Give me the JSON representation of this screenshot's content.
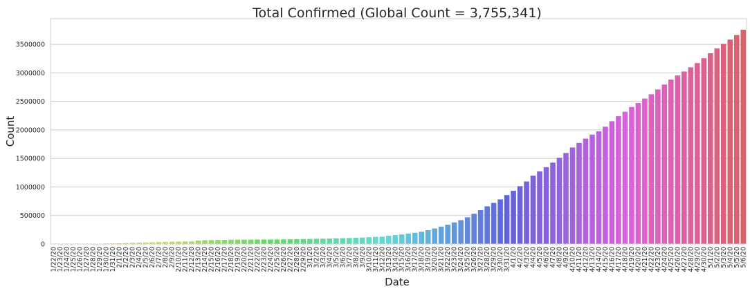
{
  "chart_data": {
    "type": "bar",
    "title": "Total Confirmed (Global Count = 3,755,341)",
    "xlabel": "Date",
    "ylabel": "Count",
    "ylim": [
      0,
      3950000
    ],
    "yticks": [
      0,
      500000,
      1000000,
      1500000,
      2000000,
      2500000,
      3000000,
      3500000
    ],
    "ytick_labels": [
      "0",
      "500000",
      "1000000",
      "1500000",
      "2000000",
      "2500000",
      "3000000",
      "3500000"
    ],
    "grid": true,
    "legend": "none",
    "categories": [
      "1/22/20",
      "1/23/20",
      "1/24/20",
      "1/25/20",
      "1/26/20",
      "1/27/20",
      "1/28/20",
      "1/29/20",
      "1/30/20",
      "1/31/20",
      "2/1/20",
      "2/2/20",
      "2/3/20",
      "2/4/20",
      "2/5/20",
      "2/6/20",
      "2/7/20",
      "2/8/20",
      "2/9/20",
      "2/10/20",
      "2/11/20",
      "2/12/20",
      "2/13/20",
      "2/14/20",
      "2/15/20",
      "2/16/20",
      "2/17/20",
      "2/18/20",
      "2/19/20",
      "2/20/20",
      "2/21/20",
      "2/22/20",
      "2/23/20",
      "2/24/20",
      "2/25/20",
      "2/26/20",
      "2/27/20",
      "2/28/20",
      "2/29/20",
      "3/1/20",
      "3/2/20",
      "3/3/20",
      "3/4/20",
      "3/5/20",
      "3/6/20",
      "3/7/20",
      "3/8/20",
      "3/9/20",
      "3/10/20",
      "3/11/20",
      "3/12/20",
      "3/13/20",
      "3/14/20",
      "3/15/20",
      "3/16/20",
      "3/17/20",
      "3/18/20",
      "3/19/20",
      "3/20/20",
      "3/21/20",
      "3/22/20",
      "3/23/20",
      "3/24/20",
      "3/25/20",
      "3/26/20",
      "3/27/20",
      "3/28/20",
      "3/29/20",
      "3/30/20",
      "3/31/20",
      "4/1/20",
      "4/2/20",
      "4/3/20",
      "4/4/20",
      "4/5/20",
      "4/6/20",
      "4/7/20",
      "4/8/20",
      "4/9/20",
      "4/10/20",
      "4/11/20",
      "4/12/20",
      "4/13/20",
      "4/14/20",
      "4/15/20",
      "4/16/20",
      "4/17/20",
      "4/18/20",
      "4/19/20",
      "4/20/20",
      "4/21/20",
      "4/22/20",
      "4/23/20",
      "4/24/20",
      "4/25/20",
      "4/26/20",
      "4/27/20",
      "4/28/20",
      "4/29/20",
      "4/30/20",
      "5/1/20",
      "5/2/20",
      "5/3/20",
      "5/4/20",
      "5/5/20",
      "5/6/20"
    ],
    "values": [
      555,
      654,
      941,
      1434,
      2118,
      2927,
      5578,
      6166,
      8234,
      9927,
      12038,
      16787,
      19881,
      23892,
      27636,
      30818,
      34392,
      37121,
      40151,
      42763,
      44803,
      45222,
      60370,
      66887,
      69032,
      71226,
      73260,
      75138,
      75641,
      76199,
      76843,
      78599,
      78985,
      79570,
      80415,
      81397,
      82756,
      84124,
      86013,
      88371,
      90309,
      92844,
      95124,
      98931,
      102186,
      106038,
      109949,
      113556,
      118554,
      125868,
      128346,
      145193,
      156094,
      167454,
      181574,
      197102,
      214821,
      242570,
      272208,
      304507,
      336953,
      378235,
      418045,
      467653,
      529591,
      593291,
      660706,
      720117,
      782365,
      857487,
      932605,
      1013157,
      1095917,
      1197405,
      1272115,
      1345101,
      1426096,
      1511104,
      1595350,
      1691719,
      1771514,
      1846680,
      1917320,
      1976191,
      2056055,
      2152437,
      2240190,
      2317759,
      2401378,
      2472259,
      2549123,
      2624610,
      2708885,
      2795735,
      2881140,
      2955033,
      3023722,
      3097229,
      3172287,
      3256846,
      3343777,
      3427343,
      3506729,
      3583055,
      3662691,
      3755341
    ]
  }
}
